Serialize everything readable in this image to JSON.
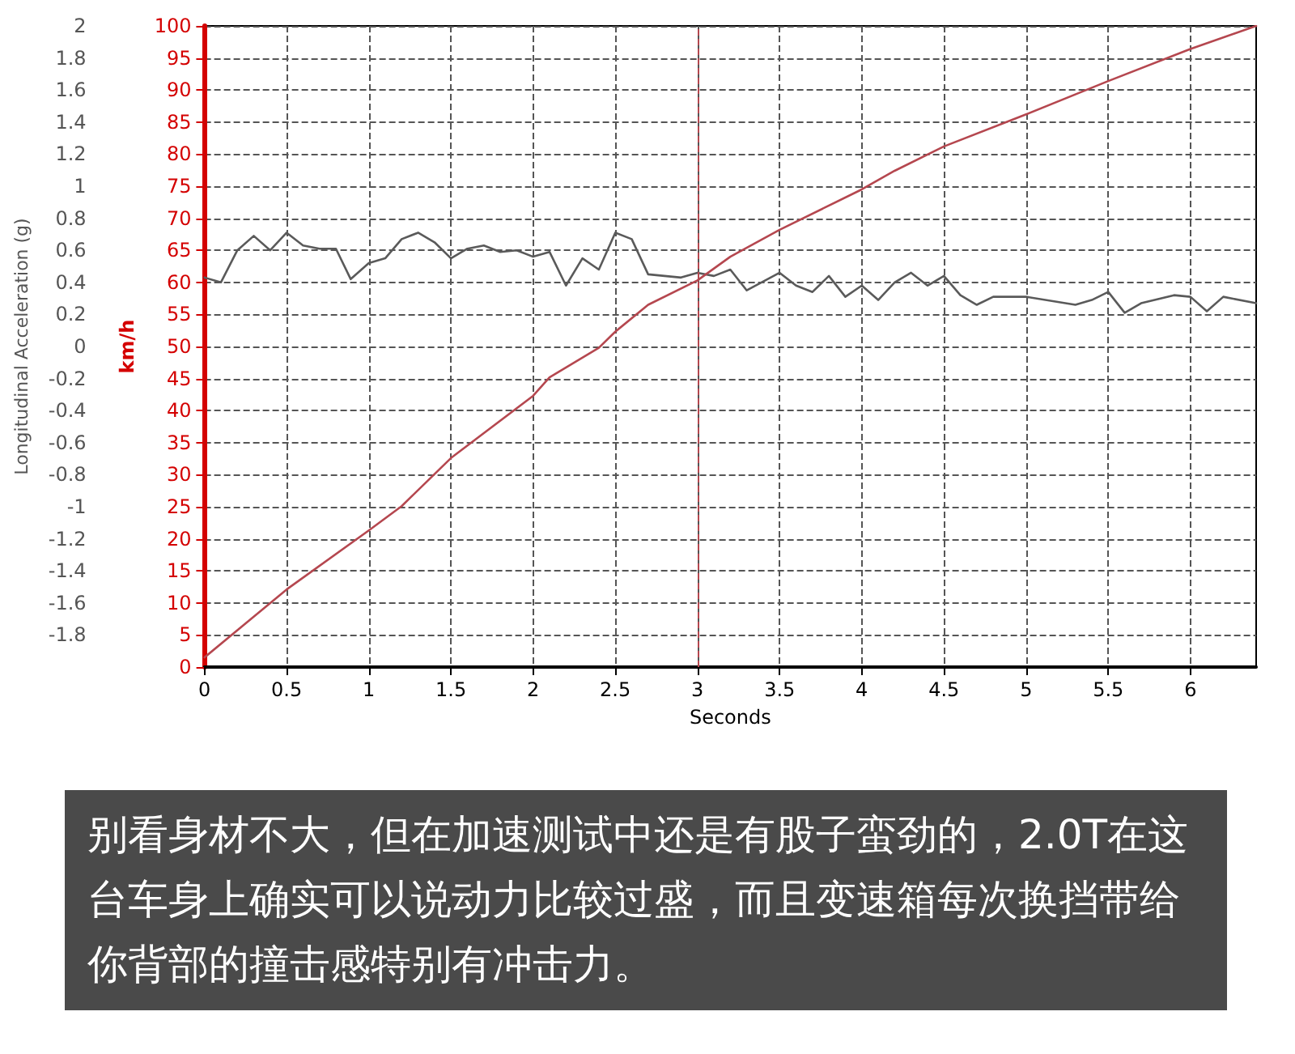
{
  "chart_data": {
    "type": "line",
    "xlabel": "Seconds",
    "ylabel": "Longitudinal Acceleration (g)",
    "y2label": "km/h",
    "xlim": [
      0,
      6.4
    ],
    "xticks": [
      0,
      0.5,
      1,
      1.5,
      2,
      2.5,
      3,
      3.5,
      4,
      4.5,
      5,
      5.5,
      6
    ],
    "ylim": [
      -2,
      2
    ],
    "yticks": [
      -1.8,
      -1.6,
      -1.4,
      -1.2,
      -1,
      -0.8,
      -0.6,
      -0.4,
      -0.2,
      0,
      0.2,
      0.4,
      0.6,
      0.8,
      1,
      1.2,
      1.4,
      1.6,
      1.8,
      2
    ],
    "y2lim": [
      0,
      100
    ],
    "y2ticks": [
      0,
      5,
      10,
      15,
      20,
      25,
      30,
      35,
      40,
      45,
      50,
      55,
      60,
      65,
      70,
      75,
      80,
      85,
      90,
      95,
      100
    ],
    "grid": true,
    "line_style": "solid",
    "marker": "none",
    "series": [
      {
        "color": "#5a5a5a",
        "x": [
          0,
          0.1,
          0.2,
          0.3,
          0.4,
          0.5,
          0.6,
          0.7,
          0.8,
          0.89,
          1.0,
          1.1,
          1.2,
          1.3,
          1.4,
          1.5,
          1.6,
          1.7,
          1.8,
          1.9,
          2.0,
          2.1,
          2.2,
          2.3,
          2.4,
          2.5,
          2.6,
          2.7,
          2.9,
          3.0,
          3.1,
          3.2,
          3.3,
          3.5,
          3.6,
          3.7,
          3.8,
          3.9,
          4.0,
          4.1,
          4.2,
          4.3,
          4.4,
          4.5,
          4.6,
          4.7,
          4.8,
          5.0,
          5.3,
          5.4,
          5.5,
          5.6,
          5.7,
          5.9,
          6.0,
          6.1,
          6.2,
          6.4
        ],
        "values": [
          0.43,
          0.4,
          0.6,
          0.69,
          0.6,
          0.71,
          0.63,
          0.61,
          0.61,
          0.42,
          0.52,
          0.55,
          0.67,
          0.71,
          0.65,
          0.55,
          0.61,
          0.63,
          0.59,
          0.6,
          0.56,
          0.59,
          0.38,
          0.55,
          0.48,
          0.71,
          0.67,
          0.45,
          0.43,
          0.46,
          0.44,
          0.48,
          0.35,
          0.46,
          0.38,
          0.34,
          0.44,
          0.31,
          0.38,
          0.29,
          0.4,
          0.46,
          0.38,
          0.44,
          0.32,
          0.26,
          0.31,
          0.31,
          0.26,
          0.29,
          0.34,
          0.21,
          0.27,
          0.32,
          0.31,
          0.22,
          0.31,
          0.27
        ]
      },
      {
        "color": "#b5474f",
        "axis": "y2",
        "x": [
          0,
          0.5,
          1.0,
          1.2,
          1.5,
          2.0,
          2.1,
          2.4,
          2.5,
          2.7,
          3.0,
          3.2,
          3.5,
          4.0,
          4.2,
          4.5,
          5.0,
          5.5,
          6.0,
          6.4
        ],
        "values": [
          1.5,
          12.1,
          21.3,
          25.1,
          32.6,
          42.3,
          45.2,
          49.8,
          52.3,
          56.5,
          60.3,
          64,
          68.2,
          74.5,
          77.4,
          81.2,
          86.2,
          91.4,
          96.4,
          100
        ]
      }
    ],
    "ref_lines": [
      {
        "axis": "x",
        "value": 3,
        "color": "#b5474f",
        "line_style": "dashed"
      }
    ],
    "annotations": [
      "别看身材不大，但在加速测试中还是有股子蛮劲的，2.0T在这台车身上确实可以说动力比较过盛，而且变速箱每次换挡带给你背部的撞击感特别有冲击力。"
    ]
  }
}
